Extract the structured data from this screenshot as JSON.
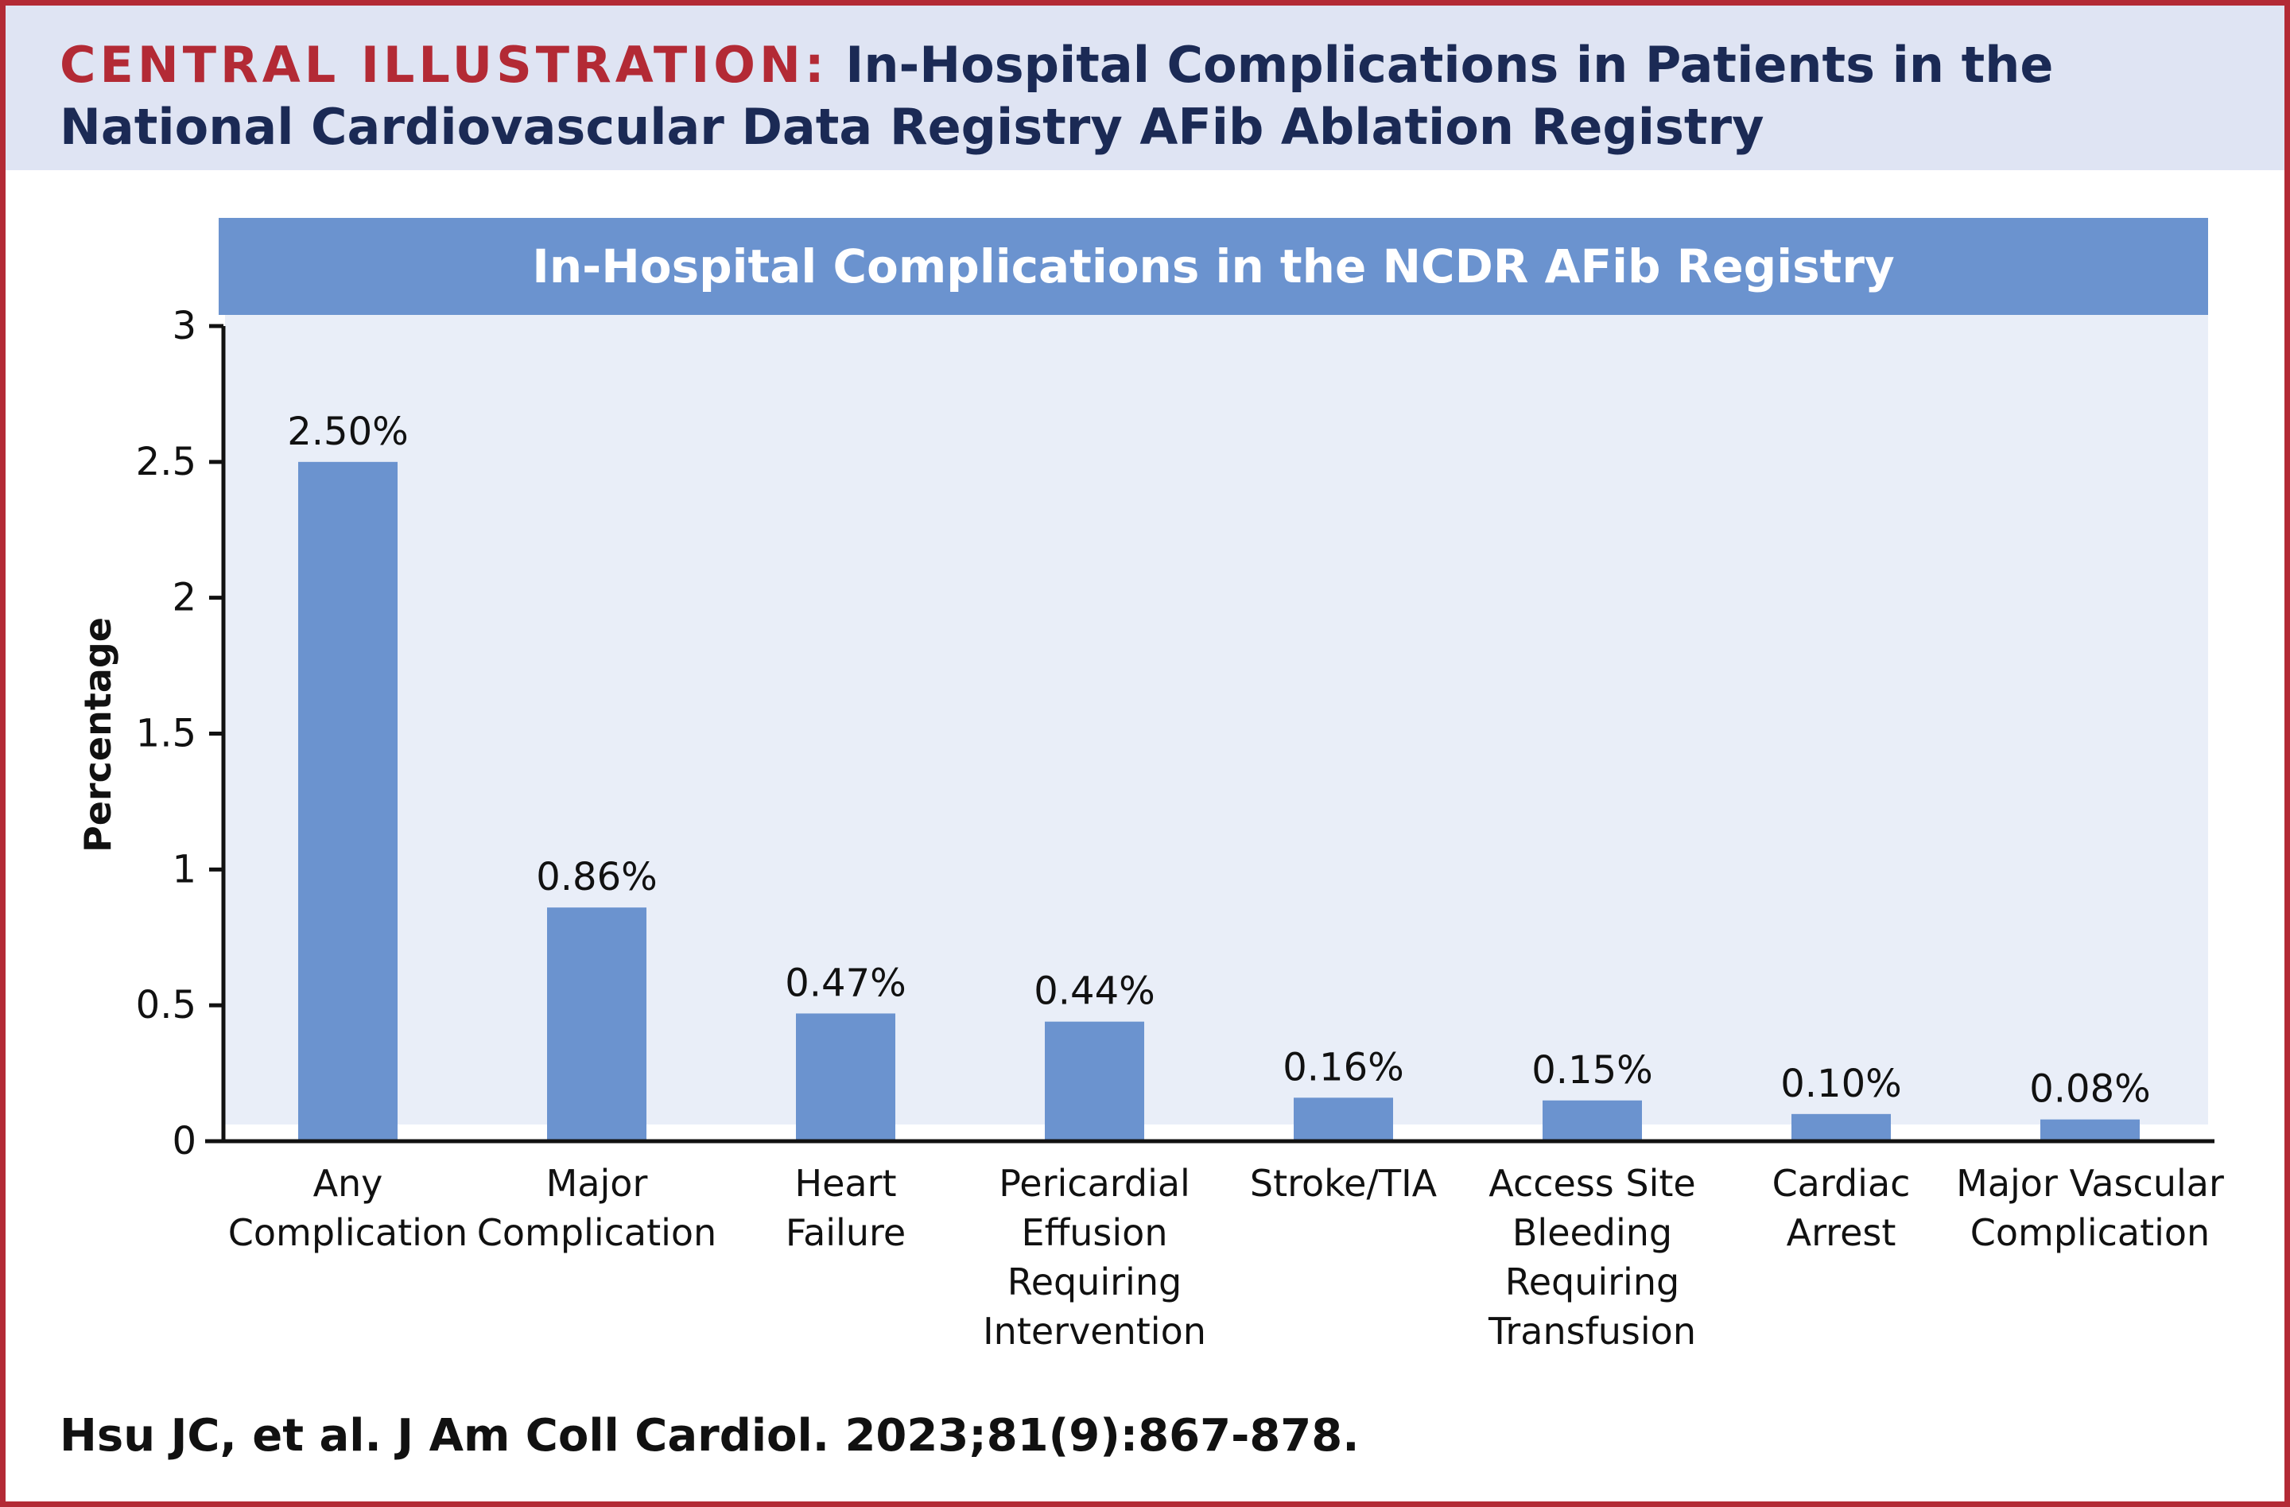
{
  "header": {
    "label": "CENTRAL ILLUSTRATION:",
    "title_line1": "In-Hospital Complications in Patients in the",
    "title_line2": "National Cardiovascular Data Registry AFib Ablation Registry"
  },
  "citation": "Hsu JC, et al. J Am Coll Cardiol. 2023;81(9):867-878.",
  "colors": {
    "accent_red": "#b32a35",
    "header_bg": "#dfe4f3",
    "header_text": "#1b2a55",
    "bar": "#6b93cf",
    "plot_bg": "#e9eef8"
  },
  "chart_data": {
    "type": "bar",
    "title": "In-Hospital Complications in the NCDR AFib Registry",
    "xlabel": "",
    "ylabel": "Percentage",
    "ylim": [
      0,
      3
    ],
    "yticks": [
      "0",
      "0.5",
      "1",
      "1.5",
      "2",
      "2.5",
      "3"
    ],
    "grid": false,
    "categories": [
      [
        "Any",
        "Complication"
      ],
      [
        "Major",
        "Complication"
      ],
      [
        "Heart",
        "Failure"
      ],
      [
        "Pericardial",
        "Effusion",
        "Requiring",
        "Intervention"
      ],
      [
        "Stroke/TIA"
      ],
      [
        "Access Site",
        "Bleeding",
        "Requiring",
        "Transfusion"
      ],
      [
        "Cardiac",
        "Arrest"
      ],
      [
        "Major Vascular",
        "Complication"
      ]
    ],
    "values": [
      2.5,
      0.86,
      0.47,
      0.44,
      0.16,
      0.15,
      0.1,
      0.08
    ],
    "data_labels": [
      "2.50%",
      "0.86%",
      "0.47%",
      "0.44%",
      "0.16%",
      "0.15%",
      "0.10%",
      "0.08%"
    ]
  }
}
